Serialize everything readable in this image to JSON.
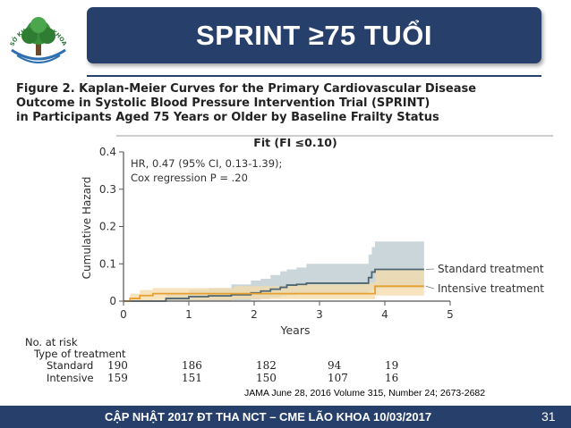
{
  "header": {
    "title": "SPRINT ≥75 TUỔI",
    "logo_text": "SỞ KHOA LÃO KHOA BVĐK TỈNH"
  },
  "figure": {
    "heading_lines": [
      "Figure 2. Kaplan-Meier Curves for the Primary Cardiovascular Disease",
      "Outcome in Systolic Blood Pressure Intervention Trial (SPRINT)",
      "in Participants Aged 75 Years or Older by Baseline Frailty Status"
    ]
  },
  "chart_data": {
    "type": "line",
    "title": "Fit (FI ≤0.10)",
    "xlabel": "Years",
    "ylabel": "Cumulative Hazard",
    "xlim": [
      0,
      5
    ],
    "ylim": [
      0,
      0.4
    ],
    "x_ticks": [
      "0",
      "1",
      "2",
      "3",
      "4",
      "5"
    ],
    "y_ticks": [
      "0",
      "0.1",
      "0.2",
      "0.3",
      "0.4"
    ],
    "annotation_lines": [
      "HR, 0.47 (95% CI, 0.13-1.39);",
      "Cox regression P = .20"
    ],
    "series": [
      {
        "name": "Standard treatment",
        "color": "#4d6672",
        "band_color": "#b9c8cf",
        "x": [
          0,
          0.65,
          1.0,
          1.3,
          1.65,
          1.95,
          2.1,
          2.25,
          2.4,
          2.5,
          2.65,
          2.8,
          3.7,
          3.75,
          3.8,
          3.85,
          4.6
        ],
        "y": [
          0,
          0.007,
          0.012,
          0.014,
          0.017,
          0.022,
          0.027,
          0.032,
          0.037,
          0.043,
          0.045,
          0.048,
          0.048,
          0.063,
          0.078,
          0.085,
          0.085
        ],
        "ci_lower": [
          0,
          0,
          0,
          0,
          0.002,
          0.004,
          0.006,
          0.01,
          0.013,
          0.016,
          0.018,
          0.02,
          0.02,
          0.025,
          0.03,
          0.035,
          0.035
        ],
        "ci_upper": [
          0,
          0.02,
          0.03,
          0.035,
          0.045,
          0.055,
          0.06,
          0.07,
          0.08,
          0.085,
          0.09,
          0.1,
          0.1,
          0.125,
          0.145,
          0.16,
          0.16
        ]
      },
      {
        "name": "Intensive treatment",
        "color": "#e6a030",
        "band_color": "#f4dba8",
        "x": [
          0,
          0.1,
          0.25,
          0.45,
          1.7,
          2.5,
          3.6,
          3.85,
          4.6
        ],
        "y": [
          0,
          0.007,
          0.015,
          0.02,
          0.02,
          0.02,
          0.02,
          0.04,
          0.04
        ],
        "ci_lower": [
          0,
          0,
          0,
          0.003,
          0.005,
          0.005,
          0.005,
          0.015,
          0.015
        ],
        "ci_upper": [
          0,
          0.02,
          0.03,
          0.035,
          0.04,
          0.045,
          0.05,
          0.085,
          0.085
        ]
      }
    ]
  },
  "risk_table": {
    "heading": "No. at risk",
    "subheading": "Type of treatment",
    "rows": [
      {
        "label": "Standard",
        "values": [
          "190",
          "186",
          "182",
          "94",
          "19"
        ]
      },
      {
        "label": "Intensive",
        "values": [
          "159",
          "151",
          "150",
          "107",
          "16"
        ]
      }
    ]
  },
  "citation": "JAMA June 28, 2016 Volume 315, Number 24; 2673-2682",
  "footer": {
    "text": "CẬP NHẬT 2017 ĐT THA NCT – CME LÃO KHOA 10/03/2017",
    "page_number": "31"
  }
}
